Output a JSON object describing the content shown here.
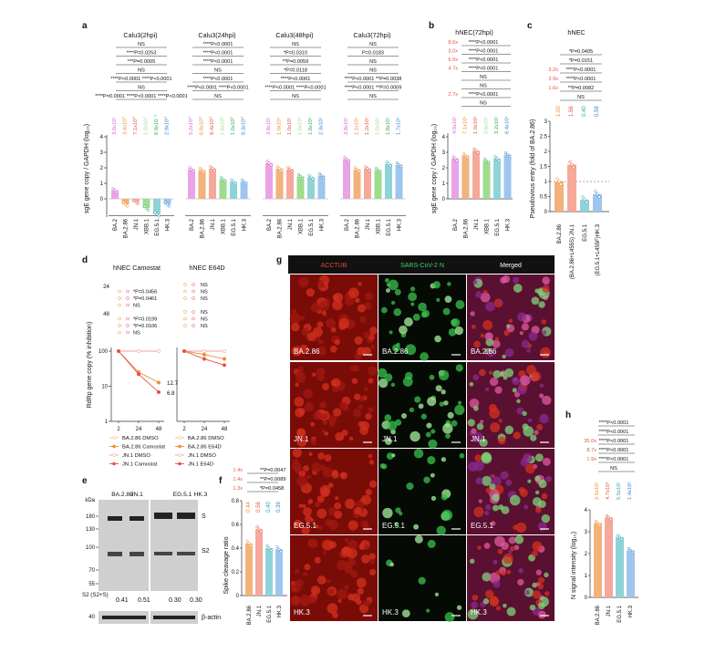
{
  "colors": {
    "ba2": "#e9a3e6",
    "ba286": "#f2b27a",
    "jn1": "#f6a89a",
    "xbb": "#9edc8e",
    "eg51": "#8fd3d8",
    "hk3": "#9ec5ee",
    "val_ba2": "#d765d2",
    "val_ba286": "#e98e2e",
    "val_jn1": "#e2543f",
    "val_eg51": "#2fae5a",
    "val_hk3": "#3a86cc",
    "val_eg51_f": "#2fae5a",
    "img_bg": "#1a0808"
  },
  "a": {
    "letter": "a",
    "ylabel": "sgE gene copy / GAPDH (log₁₀)",
    "ticks": [
      "0",
      "1",
      "2",
      "3",
      "4"
    ],
    "categories": [
      "BA.2",
      "BA.2.86",
      "JN.1",
      "XBB.1",
      "EG.5.1",
      "HK.3"
    ],
    "panels": [
      {
        "title": "Calu3(2hpi)",
        "values": [
          "3.0x10¹",
          "3.4x10⁰",
          "7.1x10⁰",
          "1.0x10⁰",
          "8.9x10⁻¹",
          "2.9x10⁰"
        ],
        "pvals": [
          "NS",
          "****P=0.0253",
          "***P=0.0005",
          "NS",
          "****P<0.0001 ****P<0.0001",
          "NS",
          "****P=0.0001 ****P<0.0001 ****P<0.0001"
        ]
      },
      {
        "title": "Calu3(24hpi)",
        "values": [
          "5.2x10⁰",
          "6.8x10⁰",
          "8.4x10⁰",
          "1.6x10⁰",
          "1.0x10⁰",
          "8.3x10⁰"
        ],
        "pvals": [
          "****P<0.0001",
          "****P<0.0001",
          "****P<0.0001",
          "NS",
          "****P<0.0001",
          "****P<0.0001 ****P<0.0001",
          "NS"
        ]
      },
      {
        "title": "Calu3(48hpi)",
        "values": [
          "3.8x10¹",
          "1.0x10¹",
          "1.0x10¹",
          "1.0x10¹",
          "1.8x10¹",
          "2.3x10¹"
        ],
        "pvals": [
          "NS",
          "*P=0.0310",
          "**P=0.0059",
          "*P=0.0118",
          "****P<0.0001",
          "****P<0.0001 ****P<0.0001",
          "NS"
        ]
      },
      {
        "title": "Calu3(72hpi)",
        "values": [
          "3.9x10¹",
          "1.1x10¹",
          "1.2x10¹",
          "1.0x10¹",
          "1.8x10¹",
          "1.7x10¹"
        ],
        "pvals": [
          "NS",
          "P=0.0183",
          "NS",
          "NS",
          "****P<0.0001 **P=0.0038",
          "****P<0.0001 **P=0.0009",
          "NS"
        ]
      }
    ]
  },
  "b": {
    "letter": "b",
    "title": "hNEC(72hpi)",
    "ylabel": "sgE gene copy / GAPDH (log₁₀)",
    "categories": [
      "BA.2",
      "BA.2.86",
      "JN.1",
      "XBB.1",
      "EG.5.1",
      "HK.3"
    ],
    "values": [
      "4.0x10¹",
      "7.1x10¹",
      "1.0x10²",
      "2.6x10¹",
      "3.2x10¹",
      "6.4x10¹"
    ],
    "pvals": [
      "8.6x;****P<0.0001",
      "3.0x;****P<0.0001",
      "6.0x;****P<0.0001",
      "4.7x;****P<0.0001",
      "NS",
      "NS",
      "2.7x;****P<0.0001",
      "NS"
    ]
  },
  "c": {
    "letter": "c",
    "title": "hNEC",
    "ylabel": "Pseudovirus entry (fold of BA.2.86)",
    "categories": [
      "BA.2.86",
      "(BA.2.86+L455S) JN.1",
      "EG.5.1",
      "(EG.5.1+L455F)HK.3"
    ],
    "values": [
      "1.00",
      "1.56",
      "0.40",
      "0.58"
    ],
    "ticks": [
      "0",
      "0.5",
      "1",
      "1.5",
      "2",
      "2.5",
      "3"
    ],
    "pvals": [
      "*P=0.0405",
      "*P=0.0151",
      "3.2x;****P<0.0001",
      "3.9x;****P<0.0001",
      "1.6x;**P=0.0082",
      "NS"
    ]
  },
  "d": {
    "letter": "d",
    "title_left": "hNEC Camostat",
    "title_right": "hNEC E64D",
    "ylabel": "RdRp gene copy (% inhibition)",
    "xticks": [
      "2",
      "24",
      "48"
    ],
    "yticks": [
      "100",
      "10",
      "1"
    ],
    "labels_right": [
      "12.7",
      "6.8"
    ],
    "legend_left": [
      "BA.2.86 DMSO",
      "BA.2.86 Camostat",
      "JN.1 DMSO",
      "JN.1 Camostat"
    ],
    "legend_right": [
      "BA.2.86 DMSO",
      "BA.2.86 E64D",
      "JN.1 DMSO",
      "JN.1 E64D"
    ],
    "p_left": [
      "24",
      "*P=0.0456",
      "*P=0.0461",
      "NS",
      "48",
      "*P=0.0199",
      "*P=0.0106",
      "NS"
    ],
    "p_right": [
      "NS",
      "NS",
      "NS",
      "NS",
      "NS",
      "NS"
    ]
  },
  "e": {
    "letter": "e",
    "lanes": [
      "BA.2.86",
      "JN.1",
      "EG.5.1",
      "HK.3"
    ],
    "markers": [
      "kDa",
      "180",
      "130",
      "100",
      "70",
      "55"
    ],
    "bands": [
      "S",
      "S2"
    ],
    "ratio_label": "S2 (S2+S)",
    "ratios": [
      "0.41",
      "0.51",
      "0.30",
      "0.30"
    ],
    "actin": "β-actin",
    "actin_marker": "40"
  },
  "f": {
    "letter": "f",
    "ylabel": "Spike cleavage ratio",
    "categories": [
      "BA.2.86",
      "JN.1",
      "EG.5.1",
      "HK.3"
    ],
    "values": [
      "0.44",
      "0.56",
      "0.40",
      "0.39"
    ],
    "ticks": [
      "0",
      "0.2",
      "0.4",
      "0.6",
      "0.8"
    ],
    "pvals": [
      "1.4x;**P=0.0047",
      "1.4x;**P=0.0089",
      "1.3x;*P=0.0458"
    ]
  },
  "g": {
    "letter": "g",
    "headers": [
      "ACCTUB",
      "SARS-CoV-2 N",
      "Merged"
    ],
    "rows": [
      "BA.2.86",
      "JN.1",
      "EG.5.1",
      "HK.3"
    ]
  },
  "h": {
    "letter": "h",
    "ylabel": "N signal intensity (log₁₀)",
    "categories": [
      "BA.2.86",
      "JN.1",
      "EG.5.1",
      "HK.3"
    ],
    "values": [
      "2.5x10³",
      "4.7x10³",
      "5.5x10²",
      "1.4x10²"
    ],
    "ticks": [
      "0",
      "1",
      "2",
      "3",
      "4"
    ],
    "pvals": [
      "****P<0.0001",
      "****P<0.0001",
      "35.0x;****P<0.0001",
      "8.7x;****P<0.0001",
      "1.9x;****P<0.0001",
      "NS"
    ]
  }
}
